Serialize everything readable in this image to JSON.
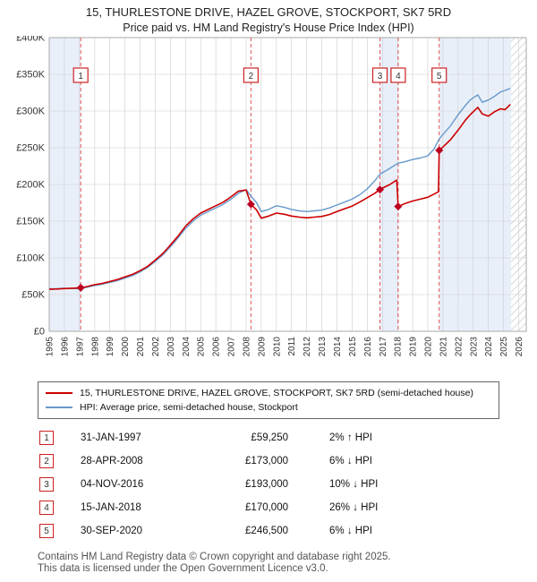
{
  "title": "15, THURLESTONE DRIVE, HAZEL GROVE, STOCKPORT, SK7 5RD",
  "subtitle": "Price paid vs. HM Land Registry's House Price Index (HPI)",
  "legend": [
    {
      "label": "15, THURLESTONE DRIVE, HAZEL GROVE, STOCKPORT, SK7 5RD (semi-detached house)",
      "color": "#cc0000"
    },
    {
      "label": "HPI: Average price, semi-detached house, Stockport",
      "color": "#6699cc"
    }
  ],
  "sales": [
    {
      "n": "1",
      "x": 1997.08,
      "price": 59250,
      "date": "31-JAN-1997",
      "price_label": "£59,250",
      "hpi_label": "2% ↑ HPI"
    },
    {
      "n": "2",
      "x": 2008.32,
      "price": 173000,
      "date": "28-APR-2008",
      "price_label": "£173,000",
      "hpi_label": "6% ↓ HPI"
    },
    {
      "n": "3",
      "x": 2016.84,
      "price": 193000,
      "date": "04-NOV-2016",
      "price_label": "£193,000",
      "hpi_label": "10% ↓ HPI"
    },
    {
      "n": "4",
      "x": 2018.04,
      "price": 170000,
      "date": "15-JAN-2018",
      "price_label": "£170,000",
      "hpi_label": "26% ↓ HPI"
    },
    {
      "n": "5",
      "x": 2020.75,
      "price": 246500,
      "date": "30-SEP-2020",
      "price_label": "£246,500",
      "hpi_label": "6% ↓ HPI"
    }
  ],
  "footer": {
    "line1": "Contains HM Land Registry data © Crown copyright and database right 2025.",
    "line2": "This data is licensed under the Open Government Licence v3.0."
  },
  "chart_data": {
    "type": "line",
    "title": "15, THURLESTONE DRIVE, HAZEL GROVE, STOCKPORT, SK7 5RD — Price paid vs. HPI",
    "x_range": [
      1995,
      2026.5
    ],
    "y_range": [
      0,
      400000
    ],
    "x_ticks": [
      1995,
      1996,
      1997,
      1998,
      1999,
      2000,
      2001,
      2002,
      2003,
      2004,
      2005,
      2006,
      2007,
      2008,
      2009,
      2010,
      2011,
      2012,
      2013,
      2014,
      2015,
      2016,
      2017,
      2018,
      2019,
      2020,
      2021,
      2022,
      2023,
      2024,
      2025,
      2026
    ],
    "y_ticks": [
      {
        "v": 0,
        "label": "£0"
      },
      {
        "v": 50000,
        "label": "£50K"
      },
      {
        "v": 100000,
        "label": "£100K"
      },
      {
        "v": 150000,
        "label": "£150K"
      },
      {
        "v": 200000,
        "label": "£200K"
      },
      {
        "v": 250000,
        "label": "£250K"
      },
      {
        "v": 300000,
        "label": "£300K"
      },
      {
        "v": 350000,
        "label": "£350K"
      },
      {
        "v": 400000,
        "label": "£400K"
      }
    ],
    "grid": true,
    "grid_color": "#cccccc",
    "band_color": "#e9eff9",
    "bands": [
      [
        1995,
        1997.08
      ],
      [
        2016.84,
        2018.04
      ],
      [
        2020.75,
        2025.5
      ]
    ],
    "hatch": [
      2025.5,
      2026.5
    ],
    "sale_line_color": "#dd5555",
    "marker_color": "#bb0022",
    "legend_position": "bottom",
    "series": [
      {
        "name": "HPI: Average price, semi-detached house, Stockport",
        "color": "#6699cc",
        "width": 1.4,
        "points": [
          [
            1995.0,
            58000
          ],
          [
            1995.5,
            58200
          ],
          [
            1996.0,
            58500
          ],
          [
            1996.5,
            58300
          ],
          [
            1997.08,
            58100
          ],
          [
            1997.5,
            60000
          ],
          [
            1998,
            62500
          ],
          [
            1998.5,
            64000
          ],
          [
            1999,
            66500
          ],
          [
            1999.5,
            69000
          ],
          [
            2000,
            72500
          ],
          [
            2000.5,
            76000
          ],
          [
            2001,
            81000
          ],
          [
            2001.5,
            87000
          ],
          [
            2002,
            95000
          ],
          [
            2002.5,
            104000
          ],
          [
            2003,
            115000
          ],
          [
            2003.5,
            127000
          ],
          [
            2004,
            140000
          ],
          [
            2004.5,
            150000
          ],
          [
            2005,
            158000
          ],
          [
            2005.5,
            163000
          ],
          [
            2006,
            168000
          ],
          [
            2006.5,
            173000
          ],
          [
            2007,
            180000
          ],
          [
            2007.5,
            188000
          ],
          [
            2008.0,
            193000
          ],
          [
            2008.32,
            184000
          ],
          [
            2008.7,
            175000
          ],
          [
            2009,
            163000
          ],
          [
            2009.5,
            166000
          ],
          [
            2010,
            171000
          ],
          [
            2010.5,
            169000
          ],
          [
            2011,
            166000
          ],
          [
            2011.5,
            164000
          ],
          [
            2012,
            163000
          ],
          [
            2012.5,
            164000
          ],
          [
            2013,
            165000
          ],
          [
            2013.5,
            168000
          ],
          [
            2014,
            172000
          ],
          [
            2014.5,
            176000
          ],
          [
            2015,
            180000
          ],
          [
            2015.5,
            186000
          ],
          [
            2016,
            194000
          ],
          [
            2016.5,
            205000
          ],
          [
            2016.84,
            214000
          ],
          [
            2017,
            216000
          ],
          [
            2017.5,
            222000
          ],
          [
            2018.04,
            229000
          ],
          [
            2018.5,
            231000
          ],
          [
            2019,
            234000
          ],
          [
            2019.5,
            236000
          ],
          [
            2020,
            239000
          ],
          [
            2020.4,
            248000
          ],
          [
            2020.75,
            262000
          ],
          [
            2021,
            268000
          ],
          [
            2021.5,
            280000
          ],
          [
            2022,
            295000
          ],
          [
            2022.5,
            308000
          ],
          [
            2022.8,
            315000
          ],
          [
            2023,
            318000
          ],
          [
            2023.3,
            322000
          ],
          [
            2023.6,
            312000
          ],
          [
            2024,
            315000
          ],
          [
            2024.4,
            320000
          ],
          [
            2024.8,
            326000
          ],
          [
            2025.1,
            328000
          ],
          [
            2025.45,
            331000
          ]
        ]
      },
      {
        "name": "15, THURLESTONE DRIVE, HAZEL GROVE, STOCKPORT, SK7 5RD (semi-detached house)",
        "color": "#cc0000",
        "width": 1.6,
        "points": [
          [
            1995.0,
            57200
          ],
          [
            1995.5,
            57600
          ],
          [
            1996.0,
            58200
          ],
          [
            1996.5,
            58600
          ],
          [
            1997.08,
            59250
          ],
          [
            1997.5,
            61000
          ],
          [
            1998,
            63500
          ],
          [
            1998.5,
            65200
          ],
          [
            1999,
            67800
          ],
          [
            1999.5,
            70500
          ],
          [
            2000,
            74000
          ],
          [
            2000.5,
            77500
          ],
          [
            2001,
            82500
          ],
          [
            2001.5,
            88500
          ],
          [
            2002,
            97000
          ],
          [
            2002.5,
            106000
          ],
          [
            2003,
            117500
          ],
          [
            2003.5,
            129500
          ],
          [
            2004,
            143000
          ],
          [
            2004.5,
            153000
          ],
          [
            2005,
            161000
          ],
          [
            2005.5,
            166000
          ],
          [
            2006,
            171000
          ],
          [
            2006.5,
            176000
          ],
          [
            2007,
            183000
          ],
          [
            2007.5,
            191000
          ],
          [
            2008.0,
            192500
          ],
          [
            2008.32,
            173000
          ],
          [
            2008.7,
            165000
          ],
          [
            2009,
            154000
          ],
          [
            2009.5,
            157000
          ],
          [
            2010,
            161000
          ],
          [
            2010.5,
            159500
          ],
          [
            2011,
            157000
          ],
          [
            2011.5,
            155500
          ],
          [
            2012,
            154500
          ],
          [
            2012.5,
            155500
          ],
          [
            2013,
            156500
          ],
          [
            2013.5,
            159000
          ],
          [
            2014,
            163000
          ],
          [
            2014.5,
            167000
          ],
          [
            2015,
            170500
          ],
          [
            2015.5,
            176000
          ],
          [
            2016,
            182000
          ],
          [
            2016.5,
            188000
          ],
          [
            2016.84,
            193000
          ],
          [
            2017,
            195000
          ],
          [
            2017.5,
            200000
          ],
          [
            2017.95,
            206000
          ],
          [
            2018.04,
            170000
          ],
          [
            2018.5,
            174000
          ],
          [
            2019,
            177500
          ],
          [
            2019.5,
            180000
          ],
          [
            2020,
            182500
          ],
          [
            2020.7,
            190000
          ],
          [
            2020.75,
            246500
          ],
          [
            2021,
            251000
          ],
          [
            2021.5,
            261000
          ],
          [
            2022,
            274000
          ],
          [
            2022.5,
            288000
          ],
          [
            2022.8,
            295000
          ],
          [
            2023,
            299000
          ],
          [
            2023.3,
            305000
          ],
          [
            2023.6,
            296000
          ],
          [
            2024,
            293000
          ],
          [
            2024.4,
            299000
          ],
          [
            2024.8,
            303000
          ],
          [
            2025.1,
            302000
          ],
          [
            2025.45,
            309000
          ]
        ]
      }
    ]
  }
}
